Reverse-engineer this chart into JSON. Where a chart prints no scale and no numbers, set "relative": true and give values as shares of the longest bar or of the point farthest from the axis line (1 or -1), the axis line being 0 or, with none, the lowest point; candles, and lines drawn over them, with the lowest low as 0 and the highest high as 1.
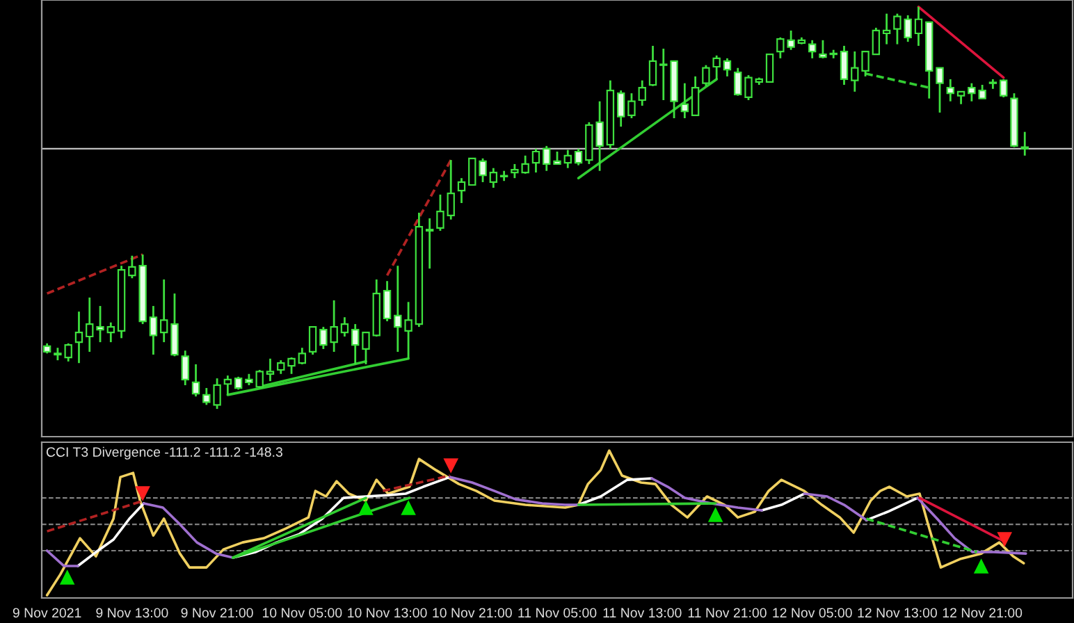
{
  "chart_data": [
    {
      "type": "candlestick",
      "relative": true,
      "tick_labels": false,
      "xlim": [
        "2021-11-09T04:30",
        "2021-11-13T05:30"
      ],
      "x": [
        "2021-11-09T05:00",
        "2021-11-09T06:00",
        "2021-11-09T07:00",
        "2021-11-09T08:00",
        "2021-11-09T09:00",
        "2021-11-09T10:00",
        "2021-11-09T11:00",
        "2021-11-09T12:00",
        "2021-11-09T13:00",
        "2021-11-09T14:00",
        "2021-11-09T15:00",
        "2021-11-09T16:00",
        "2021-11-09T17:00",
        "2021-11-09T18:00",
        "2021-11-09T19:00",
        "2021-11-09T20:00",
        "2021-11-09T21:00",
        "2021-11-09T22:00",
        "2021-11-09T23:00",
        "2021-11-10T00:00",
        "2021-11-10T01:00",
        "2021-11-10T02:00",
        "2021-11-10T03:00",
        "2021-11-10T04:00",
        "2021-11-10T05:00",
        "2021-11-10T06:00",
        "2021-11-10T07:00",
        "2021-11-10T08:00",
        "2021-11-10T09:00",
        "2021-11-10T10:00",
        "2021-11-10T11:00",
        "2021-11-10T12:00",
        "2021-11-10T13:00",
        "2021-11-10T14:00",
        "2021-11-10T15:00",
        "2021-11-10T16:00",
        "2021-11-10T17:00",
        "2021-11-10T18:00",
        "2021-11-10T19:00",
        "2021-11-10T20:00",
        "2021-11-10T21:00",
        "2021-11-10T22:00",
        "2021-11-10T23:00",
        "2021-11-11T00:00",
        "2021-11-11T01:00",
        "2021-11-11T02:00",
        "2021-11-11T03:00",
        "2021-11-11T04:00",
        "2021-11-11T05:00",
        "2021-11-11T06:00",
        "2021-11-11T07:00",
        "2021-11-11T08:00",
        "2021-11-11T09:00",
        "2021-11-11T10:00",
        "2021-11-11T11:00",
        "2021-11-11T12:00",
        "2021-11-11T13:00",
        "2021-11-11T14:00",
        "2021-11-11T15:00",
        "2021-11-11T16:00",
        "2021-11-11T17:00",
        "2021-11-11T18:00",
        "2021-11-11T19:00",
        "2021-11-11T20:00",
        "2021-11-11T21:00",
        "2021-11-11T22:00",
        "2021-11-11T23:00",
        "2021-11-12T00:00",
        "2021-11-12T01:00",
        "2021-11-12T02:00",
        "2021-11-12T03:00",
        "2021-11-12T04:00",
        "2021-11-12T05:00",
        "2021-11-12T06:00",
        "2021-11-12T07:00",
        "2021-11-12T08:00",
        "2021-11-12T09:00",
        "2021-11-12T10:00",
        "2021-11-12T11:00",
        "2021-11-12T12:00",
        "2021-11-12T13:00",
        "2021-11-12T14:00",
        "2021-11-12T15:00",
        "2021-11-12T16:00",
        "2021-11-12T17:00",
        "2021-11-12T18:00",
        "2021-11-12T19:00",
        "2021-11-12T20:00",
        "2021-11-12T21:00",
        "2021-11-12T22:00",
        "2021-11-12T23:00",
        "2021-11-13T00:00",
        "2021-11-13T01:00"
      ],
      "ohlc": [
        [
          0.156,
          0.163,
          0.138,
          0.142
        ],
        [
          0.138,
          0.152,
          0.121,
          0.135
        ],
        [
          0.128,
          0.163,
          0.118,
          0.159
        ],
        [
          0.166,
          0.242,
          0.114,
          0.19
        ],
        [
          0.18,
          0.277,
          0.142,
          0.211
        ],
        [
          0.204,
          0.256,
          0.166,
          0.197
        ],
        [
          0.19,
          0.215,
          0.166,
          0.204
        ],
        [
          0.194,
          0.356,
          0.176,
          0.346
        ],
        [
          0.332,
          0.381,
          0.325,
          0.353
        ],
        [
          0.356,
          0.384,
          0.211,
          0.218
        ],
        [
          0.228,
          0.256,
          0.135,
          0.183
        ],
        [
          0.19,
          0.322,
          0.166,
          0.221
        ],
        [
          0.211,
          0.287,
          0.131,
          0.135
        ],
        [
          0.131,
          0.145,
          0.059,
          0.073
        ],
        [
          0.066,
          0.111,
          0.031,
          0.038
        ],
        [
          0.035,
          0.052,
          0.01,
          0.017
        ],
        [
          0.01,
          0.076,
          0.0,
          0.059
        ],
        [
          0.062,
          0.083,
          0.035,
          0.073
        ],
        [
          0.076,
          0.08,
          0.048,
          0.052
        ],
        [
          0.073,
          0.087,
          0.059,
          0.066
        ],
        [
          0.055,
          0.097,
          0.052,
          0.093
        ],
        [
          0.087,
          0.125,
          0.069,
          0.093
        ],
        [
          0.097,
          0.121,
          0.087,
          0.114
        ],
        [
          0.107,
          0.128,
          0.087,
          0.125
        ],
        [
          0.114,
          0.152,
          0.111,
          0.138
        ],
        [
          0.142,
          0.204,
          0.135,
          0.204
        ],
        [
          0.197,
          0.204,
          0.149,
          0.159
        ],
        [
          0.166,
          0.27,
          0.142,
          0.204
        ],
        [
          0.19,
          0.228,
          0.18,
          0.211
        ],
        [
          0.197,
          0.211,
          0.111,
          0.159
        ],
        [
          0.149,
          0.19,
          0.111,
          0.19
        ],
        [
          0.183,
          0.322,
          0.18,
          0.287
        ],
        [
          0.294,
          0.318,
          0.218,
          0.225
        ],
        [
          0.232,
          0.356,
          0.142,
          0.204
        ],
        [
          0.194,
          0.266,
          0.125,
          0.221
        ],
        [
          0.211,
          0.488,
          0.204,
          0.453
        ],
        [
          0.443,
          0.474,
          0.349,
          0.446
        ],
        [
          0.45,
          0.533,
          0.443,
          0.491
        ],
        [
          0.481,
          0.619,
          0.471,
          0.536
        ],
        [
          0.543,
          0.574,
          0.512,
          0.564
        ],
        [
          0.557,
          0.623,
          0.557,
          0.623
        ],
        [
          0.616,
          0.623,
          0.564,
          0.581
        ],
        [
          0.564,
          0.599,
          0.55,
          0.588
        ],
        [
          0.578,
          0.592,
          0.567,
          0.578
        ],
        [
          0.588,
          0.609,
          0.574,
          0.595
        ],
        [
          0.588,
          0.63,
          0.585,
          0.609
        ],
        [
          0.612,
          0.647,
          0.588,
          0.64
        ],
        [
          0.647,
          0.654,
          0.592,
          0.609
        ],
        [
          0.616,
          0.64,
          0.609,
          0.609
        ],
        [
          0.612,
          0.644,
          0.599,
          0.63
        ],
        [
          0.64,
          0.647,
          0.606,
          0.612
        ],
        [
          0.619,
          0.713,
          0.609,
          0.706
        ],
        [
          0.713,
          0.765,
          0.592,
          0.654
        ],
        [
          0.657,
          0.817,
          0.647,
          0.792
        ],
        [
          0.785,
          0.792,
          0.702,
          0.727
        ],
        [
          0.73,
          0.785,
          0.723,
          0.765
        ],
        [
          0.768,
          0.817,
          0.754,
          0.799
        ],
        [
          0.806,
          0.903,
          0.803,
          0.865
        ],
        [
          0.855,
          0.896,
          0.768,
          0.855
        ],
        [
          0.865,
          0.865,
          0.723,
          0.765
        ],
        [
          0.758,
          0.81,
          0.723,
          0.74
        ],
        [
          0.73,
          0.827,
          0.73,
          0.799
        ],
        [
          0.81,
          0.855,
          0.803,
          0.848
        ],
        [
          0.851,
          0.879,
          0.82,
          0.872
        ],
        [
          0.865,
          0.872,
          0.827,
          0.844
        ],
        [
          0.837,
          0.848,
          0.779,
          0.782
        ],
        [
          0.775,
          0.83,
          0.768,
          0.824
        ],
        [
          0.813,
          0.824,
          0.806,
          0.82
        ],
        [
          0.813,
          0.882,
          0.813,
          0.882
        ],
        [
          0.889,
          0.924,
          0.872,
          0.92
        ],
        [
          0.917,
          0.941,
          0.893,
          0.9
        ],
        [
          0.91,
          0.924,
          0.907,
          0.917
        ],
        [
          0.907,
          0.917,
          0.872,
          0.889
        ],
        [
          0.882,
          0.917,
          0.872,
          0.875
        ],
        [
          0.882,
          0.893,
          0.872,
          0.882
        ],
        [
          0.889,
          0.903,
          0.806,
          0.82
        ],
        [
          0.817,
          0.889,
          0.789,
          0.848
        ],
        [
          0.841,
          0.889,
          0.827,
          0.889
        ],
        [
          0.882,
          0.948,
          0.882,
          0.941
        ],
        [
          0.934,
          0.983,
          0.907,
          0.941
        ],
        [
          0.945,
          0.983,
          0.907,
          0.976
        ],
        [
          0.969,
          0.979,
          0.913,
          0.924
        ],
        [
          0.934,
          1.0,
          0.903,
          0.969
        ],
        [
          0.962,
          0.962,
          0.772,
          0.841
        ],
        [
          0.848,
          0.848,
          0.737,
          0.81
        ],
        [
          0.799,
          0.82,
          0.765,
          0.785
        ],
        [
          0.779,
          0.789,
          0.758,
          0.789
        ],
        [
          0.799,
          0.81,
          0.765,
          0.785
        ],
        [
          0.792,
          0.806,
          0.772,
          0.772
        ],
        [
          0.81,
          0.82,
          0.796,
          0.81
        ],
        [
          0.817,
          0.82,
          0.775,
          0.779
        ],
        [
          0.772,
          0.785,
          0.651,
          0.654
        ],
        [
          0.651,
          0.689,
          0.63,
          0.647
        ]
      ],
      "ref_lines": [
        {
          "axis": "y",
          "value": 0.647,
          "color": "#c0c0c0",
          "line_style": "solid"
        }
      ],
      "series": [
        {
          "type": "line",
          "color": "#b22222",
          "line_style": "dashed",
          "x": [
            "2021-11-09T05:00",
            "2021-11-09T14:00"
          ],
          "values": [
            0.287,
            0.384
          ]
        },
        {
          "type": "line",
          "color": "#32cd32",
          "line_style": "solid",
          "x": [
            "2021-11-09T22:00",
            "2021-11-10T15:00"
          ],
          "values": [
            0.035,
            0.125
          ]
        },
        {
          "type": "line",
          "color": "#32cd32",
          "line_style": "solid",
          "x": [
            "2021-11-10T01:00",
            "2021-11-10T11:00"
          ],
          "values": [
            0.055,
            0.118
          ]
        },
        {
          "type": "line",
          "color": "#b22222",
          "line_style": "dashed",
          "x": [
            "2021-11-10T13:00",
            "2021-11-10T19:00"
          ],
          "values": [
            0.332,
            0.619
          ]
        },
        {
          "type": "line",
          "color": "#32cd32",
          "line_style": "solid",
          "x": [
            "2021-11-11T07:00",
            "2021-11-11T20:00"
          ],
          "values": [
            0.574,
            0.82
          ]
        },
        {
          "type": "line",
          "color": "#32cd32",
          "line_style": "dashed",
          "x": [
            "2021-11-12T10:00",
            "2021-11-12T16:00"
          ],
          "values": [
            0.834,
            0.799
          ]
        },
        {
          "type": "line",
          "color": "#dc143c",
          "line_style": "solid",
          "x": [
            "2021-11-12T15:00",
            "2021-11-12T23:00"
          ],
          "values": [
            1.0,
            0.824
          ]
        }
      ]
    },
    {
      "type": "line",
      "relative": true,
      "title": "CCI T3 Divergence -111.2 -111.2 -148.3",
      "tick_labels": "x",
      "xlim": [
        "2021-11-09T04:30",
        "2021-11-13T05:30"
      ],
      "xticks": [
        {
          "value": "2021-11-09T05:00",
          "label": "9 Nov 2021"
        },
        {
          "value": "2021-11-09T13:00",
          "label": "9 Nov 13:00"
        },
        {
          "value": "2021-11-09T21:00",
          "label": "9 Nov 21:00"
        },
        {
          "value": "2021-11-10T05:00",
          "label": "10 Nov 05:00"
        },
        {
          "value": "2021-11-10T13:00",
          "label": "10 Nov 13:00"
        },
        {
          "value": "2021-11-10T21:00",
          "label": "10 Nov 21:00"
        },
        {
          "value": "2021-11-11T05:00",
          "label": "11 Nov 05:00"
        },
        {
          "value": "2021-11-11T13:00",
          "label": "11 Nov 13:00"
        },
        {
          "value": "2021-11-11T21:00",
          "label": "11 Nov 21:00"
        },
        {
          "value": "2021-11-12T05:00",
          "label": "12 Nov 05:00"
        },
        {
          "value": "2021-11-12T13:00",
          "label": "12 Nov 13:00"
        },
        {
          "value": "2021-11-12T21:00",
          "label": "12 Nov 21:00"
        }
      ],
      "ref_lines": [
        {
          "axis": "y",
          "value": 0.673,
          "color": "#808080",
          "line_style": "dashed"
        },
        {
          "axis": "y",
          "value": 0.49,
          "color": "#808080",
          "line_style": "dashed"
        },
        {
          "axis": "y",
          "value": 0.308,
          "color": "#808080",
          "line_style": "dashed"
        }
      ],
      "series": [
        {
          "type": "line",
          "color": "#f0d060",
          "line_style": "solid",
          "x": [
            "2021-11-09T05:00",
            "2021-11-09T06:15",
            "2021-11-09T08:06",
            "2021-11-09T09:36",
            "2021-11-09T11:15",
            "2021-11-09T11:54",
            "2021-11-09T13:06",
            "2021-11-09T13:45",
            "2021-11-09T15:00",
            "2021-11-09T16:00",
            "2021-11-09T17:30",
            "2021-11-09T18:24",
            "2021-11-09T20:00",
            "2021-11-09T21:36",
            "2021-11-09T23:24",
            "2021-11-10T01:24",
            "2021-11-10T03:30",
            "2021-11-10T05:36",
            "2021-11-10T06:15",
            "2021-11-10T07:15",
            "2021-11-10T08:15",
            "2021-11-10T09:24",
            "2021-11-10T11:00",
            "2021-11-10T12:00",
            "2021-11-10T13:06",
            "2021-11-10T15:06",
            "2021-11-10T16:00",
            "2021-11-10T17:36",
            "2021-11-10T19:45",
            "2021-11-10T21:24",
            "2021-11-10T23:06",
            "2021-11-11T02:00",
            "2021-11-11T05:45",
            "2021-11-11T07:00",
            "2021-11-11T07:54",
            "2021-11-11T09:06",
            "2021-11-11T09:54",
            "2021-11-11T11:06",
            "2021-11-11T12:54",
            "2021-11-11T14:15",
            "2021-11-11T15:45",
            "2021-11-11T17:15",
            "2021-11-11T19:06",
            "2021-11-11T20:45",
            "2021-11-11T22:00",
            "2021-11-11T23:36",
            "2021-11-12T00:54",
            "2021-11-12T02:06",
            "2021-11-12T04:15",
            "2021-11-12T05:54",
            "2021-11-12T07:36",
            "2021-11-12T08:54",
            "2021-11-12T10:30",
            "2021-11-12T11:24",
            "2021-11-12T12:15",
            "2021-11-12T13:54",
            "2021-11-12T15:06",
            "2021-11-12T15:54",
            "2021-11-12T17:06",
            "2021-11-12T18:54",
            "2021-11-12T20:54",
            "2021-11-12T22:36",
            "2021-11-12T23:54",
            "2021-11-13T00:54"
          ],
          "values": [
            0,
            0.144,
            0.394,
            0.269,
            0.529,
            0.817,
            0.846,
            0.654,
            0.413,
            0.529,
            0.288,
            0.192,
            0.192,
            0.317,
            0.365,
            0.394,
            0.462,
            0.538,
            0.721,
            0.683,
            0.788,
            0.702,
            0.654,
            0.798,
            0.702,
            0.75,
            0.942,
            0.865,
            0.769,
            0.721,
            0.654,
            0.625,
            0.606,
            0.625,
            0.769,
            0.865,
            1.0,
            0.827,
            0.779,
            0.769,
            0.625,
            0.538,
            0.683,
            0.625,
            0.538,
            0.577,
            0.721,
            0.798,
            0.721,
            0.625,
            0.538,
            0.433,
            0.654,
            0.721,
            0.75,
            0.683,
            0.702,
            0.49,
            0.192,
            0.25,
            0.288,
            0.365,
            0.269,
            0.221
          ]
        },
        {
          "type": "line",
          "color": "#ffffff",
          "line_style": "solid",
          "x": [
            "2021-11-09T07:54",
            "2021-11-09T09:36",
            "2021-11-09T11:15",
            "2021-11-09T12:45",
            "2021-11-09T14:06",
            "2021-11-09T15:54",
            "2021-11-09T17:30",
            "2021-11-09T19:06",
            "2021-11-09T20:54",
            "2021-11-09T22:30",
            "2021-11-10T00:36",
            "2021-11-10T02:36",
            "2021-11-10T04:45",
            "2021-11-10T06:54",
            "2021-11-10T08:54",
            "2021-11-10T11:00",
            "2021-11-10T13:06",
            "2021-11-10T14:45",
            "2021-11-10T16:24",
            "2021-11-10T18:54",
            "2021-11-10T21:00",
            "2021-11-10T23:06",
            "2021-11-11T01:06",
            "2021-11-11T03:36",
            "2021-11-11T05:45",
            "2021-11-11T07:00",
            "2021-11-11T09:06",
            "2021-11-11T11:36",
            "2021-11-11T13:54",
            "2021-11-11T15:24",
            "2021-11-11T17:00",
            "2021-11-11T19:30",
            "2021-11-11T22:00",
            "2021-11-12T00:15",
            "2021-11-12T02:06",
            "2021-11-12T04:15",
            "2021-11-12T06:24",
            "2021-11-12T08:00",
            "2021-11-12T10:06",
            "2021-11-12T12:06",
            "2021-11-12T14:54"
          ],
          "values": [
            0.202,
            0.298,
            0.385,
            0.529,
            0.635,
            null,
            null,
            null,
            null,
            0.26,
            0.298,
            0.365,
            0.423,
            0.529,
            0.673,
            0.683,
            0.692,
            0.702,
            0.75,
            0.817,
            null,
            null,
            null,
            null,
            null,
            0.625,
            0.683,
            0.798,
            0.808,
            null,
            null,
            null,
            null,
            0.587,
            0.625,
            0.702,
            null,
            null,
            0.519,
            0.577,
            0.673
          ]
        },
        {
          "type": "line",
          "color": "#a070d0",
          "line_style": "solid",
          "x": [
            "2021-11-09T05:00",
            "2021-11-09T06:36",
            "2021-11-09T07:54",
            "2021-11-09T09:36",
            "2021-11-09T11:15",
            "2021-11-09T12:45",
            "2021-11-09T14:06",
            "2021-11-09T15:54",
            "2021-11-09T17:30",
            "2021-11-09T19:06",
            "2021-11-09T20:54",
            "2021-11-09T22:30",
            "2021-11-10T00:36",
            "2021-11-10T02:36",
            "2021-11-10T04:45",
            "2021-11-10T06:54",
            "2021-11-10T08:54",
            "2021-11-10T11:00",
            "2021-11-10T13:06",
            "2021-11-10T14:45",
            "2021-11-10T16:24",
            "2021-11-10T18:54",
            "2021-11-10T21:00",
            "2021-11-10T23:06",
            "2021-11-11T01:06",
            "2021-11-11T03:36",
            "2021-11-11T05:45",
            "2021-11-11T07:00",
            "2021-11-11T09:06",
            "2021-11-11T11:36",
            "2021-11-11T13:54",
            "2021-11-11T15:24",
            "2021-11-11T17:00",
            "2021-11-11T19:30",
            "2021-11-11T22:00",
            "2021-11-12T00:15",
            "2021-11-12T02:06",
            "2021-11-12T04:15",
            "2021-11-12T06:24",
            "2021-11-12T08:00",
            "2021-11-12T10:06",
            "2021-11-12T12:06",
            "2021-11-12T14:54",
            "2021-11-12T16:45",
            "2021-11-12T18:24",
            "2021-11-12T20:06",
            "2021-11-12T22:06",
            "2021-11-13T01:06"
          ],
          "values": [
            0.308,
            0.202,
            0.202,
            null,
            null,
            null,
            0.635,
            0.606,
            0.49,
            0.365,
            0.288,
            0.26,
            null,
            null,
            null,
            null,
            null,
            null,
            null,
            null,
            null,
            0.817,
            0.779,
            0.721,
            0.663,
            0.635,
            0.625,
            0.625,
            null,
            null,
            0.808,
            0.75,
            0.673,
            0.635,
            0.606,
            0.587,
            null,
            0.702,
            0.683,
            0.625,
            0.519,
            null,
            0.673,
            0.529,
            0.394,
            0.298,
            0.298,
            0.288
          ]
        },
        {
          "type": "line",
          "color": "#b22222",
          "line_style": "dashed",
          "x": [
            "2021-11-09T05:00",
            "2021-11-09T14:06"
          ],
          "values": [
            0.442,
            0.654
          ]
        },
        {
          "type": "line",
          "color": "#32cd32",
          "line_style": "solid",
          "x": [
            "2021-11-09T22:30",
            "2021-11-10T11:00"
          ],
          "values": [
            0.26,
            0.673
          ]
        },
        {
          "type": "line",
          "color": "#32cd32",
          "line_style": "solid",
          "x": [
            "2021-11-09T22:30",
            "2021-11-10T15:06"
          ],
          "values": [
            0.26,
            0.673
          ]
        },
        {
          "type": "line",
          "color": "#b22222",
          "line_style": "dashed",
          "x": [
            "2021-11-10T12:36",
            "2021-11-10T18:54"
          ],
          "values": [
            0.721,
            0.827
          ]
        },
        {
          "type": "line",
          "color": "#32cd32",
          "line_style": "solid",
          "x": [
            "2021-11-11T07:00",
            "2021-11-11T19:54"
          ],
          "values": [
            0.625,
            0.635
          ]
        },
        {
          "type": "line",
          "color": "#32cd32",
          "line_style": "dashed",
          "x": [
            "2021-11-12T10:06",
            "2021-11-12T20:30"
          ],
          "values": [
            0.529,
            0.298
          ]
        },
        {
          "type": "line",
          "color": "#dc143c",
          "line_style": "solid",
          "x": [
            "2021-11-12T15:06",
            "2021-11-12T23:00"
          ],
          "values": [
            0.673,
            0.375
          ]
        },
        {
          "type": "scatter",
          "color": "#00e000",
          "marker": "triangle",
          "x": [
            "2021-11-09T06:54",
            "2021-11-10T11:00",
            "2021-11-10T15:00",
            "2021-11-11T19:54",
            "2021-11-12T20:54"
          ],
          "values": [
            0.125,
            0.606,
            0.606,
            0.558,
            0.202
          ]
        },
        {
          "type": "scatter",
          "color": "#ff2020",
          "marker": "triangle_down",
          "x": [
            "2021-11-09T14:00",
            "2021-11-10T19:00",
            "2021-11-12T23:06"
          ],
          "values": [
            0.702,
            0.894,
            0.385
          ]
        }
      ]
    }
  ]
}
